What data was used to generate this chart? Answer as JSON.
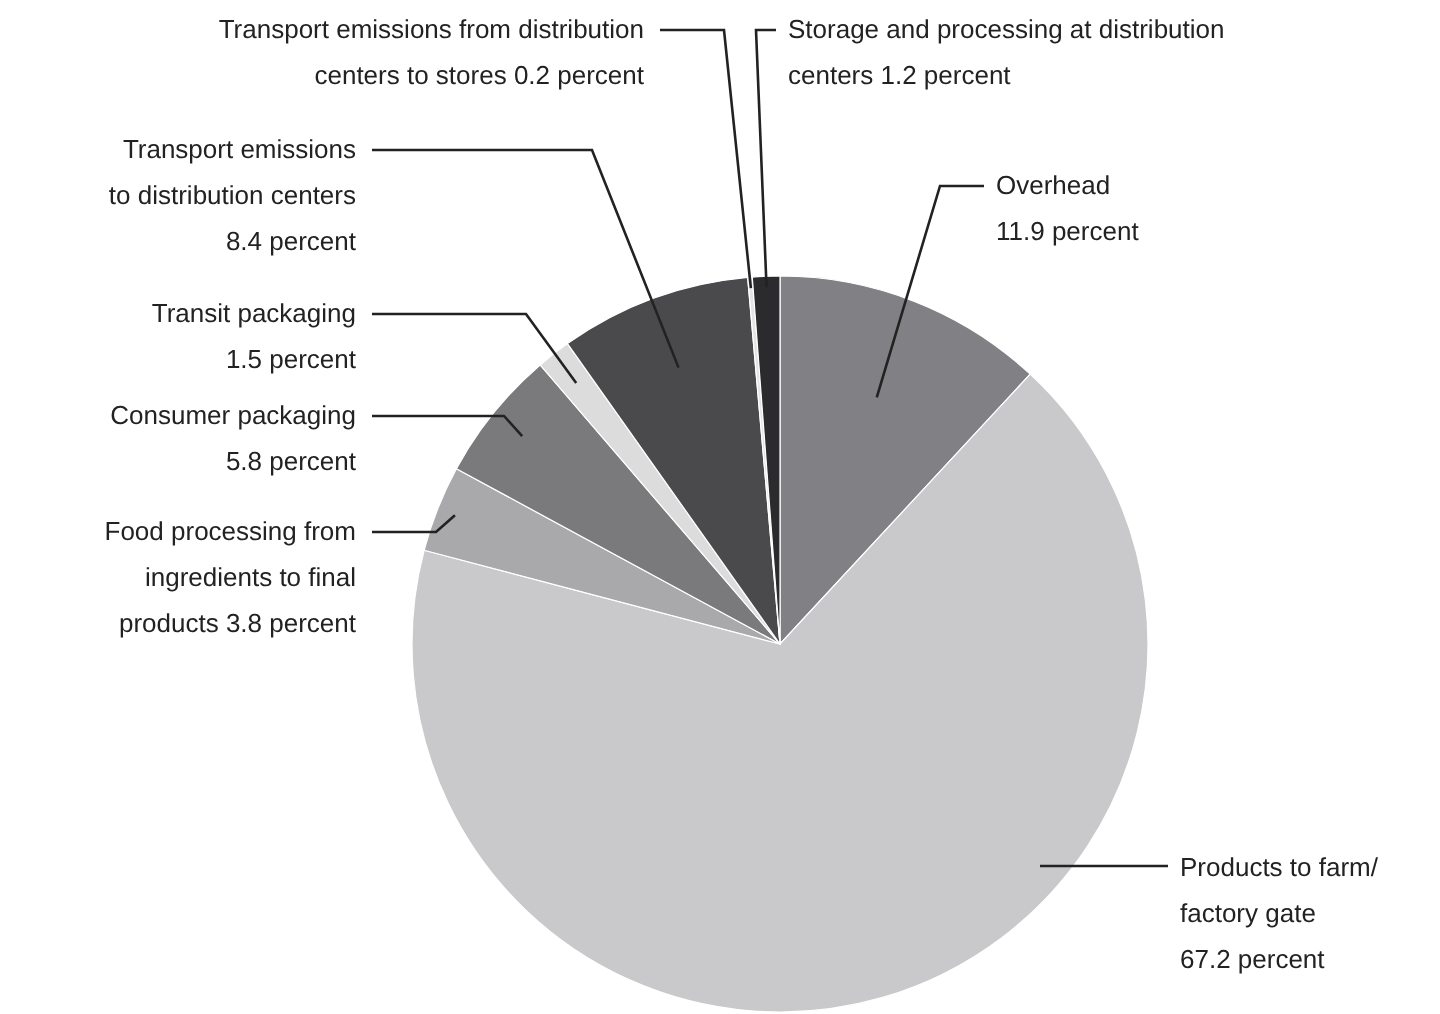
{
  "chart_data": {
    "type": "pie",
    "categories": [
      "Overhead",
      "Products to farm/factory gate",
      "Food processing from ingredients to final products",
      "Consumer packaging",
      "Transit packaging",
      "Transport emissions to distribution centers",
      "Transport emissions from distribution centers to stores",
      "Storage and processing at distribution centers"
    ],
    "values": [
      11.9,
      67.2,
      3.8,
      5.8,
      1.5,
      8.4,
      0.2,
      1.2
    ],
    "value_labels": [
      "11.9 percent",
      "67.2 percent",
      "3.8 percent",
      "5.8 percent",
      "1.5 percent",
      "8.4 percent",
      "0.2 percent",
      "1.2 percent"
    ],
    "colors": [
      "#808085",
      "#c9c9cb",
      "#a9a9ab",
      "#7a7a7d",
      "#dcdcdc",
      "#4a4a4d",
      "#e4e4e4",
      "#2b2b2e"
    ]
  }
}
